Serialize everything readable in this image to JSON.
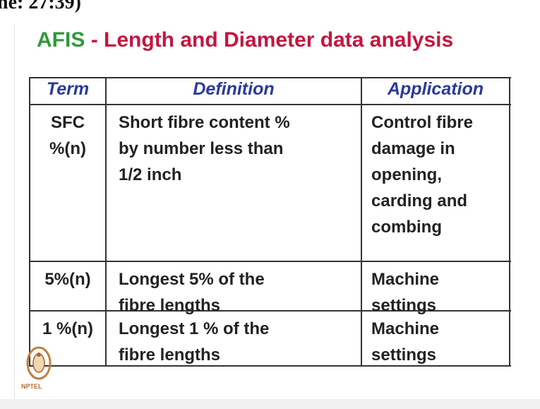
{
  "corner_caption": "ne: 27:39)",
  "title": {
    "acronym": "AFIS",
    "separator": "-",
    "text": "Length and Diameter data analysis"
  },
  "table": {
    "headers": [
      "Term",
      "Definition",
      "Application"
    ],
    "rows": [
      [
        [
          "SFC",
          "%(n)"
        ],
        [
          "Short fibre content %",
          "by number less than",
          "1/2 inch"
        ],
        [
          "Control fibre",
          "damage in",
          "opening,",
          "carding and",
          "combing"
        ]
      ],
      [
        [
          "5%(n)"
        ],
        [
          "Longest 5% of the",
          "fibre lengths"
        ],
        [
          "Machine",
          "settings"
        ]
      ],
      [
        [
          "1 %(n)"
        ],
        [
          "Longest 1 % of the",
          "fibre lengths"
        ],
        [
          "Machine",
          "settings"
        ]
      ]
    ]
  },
  "logo": {
    "text": "NPTEL"
  }
}
